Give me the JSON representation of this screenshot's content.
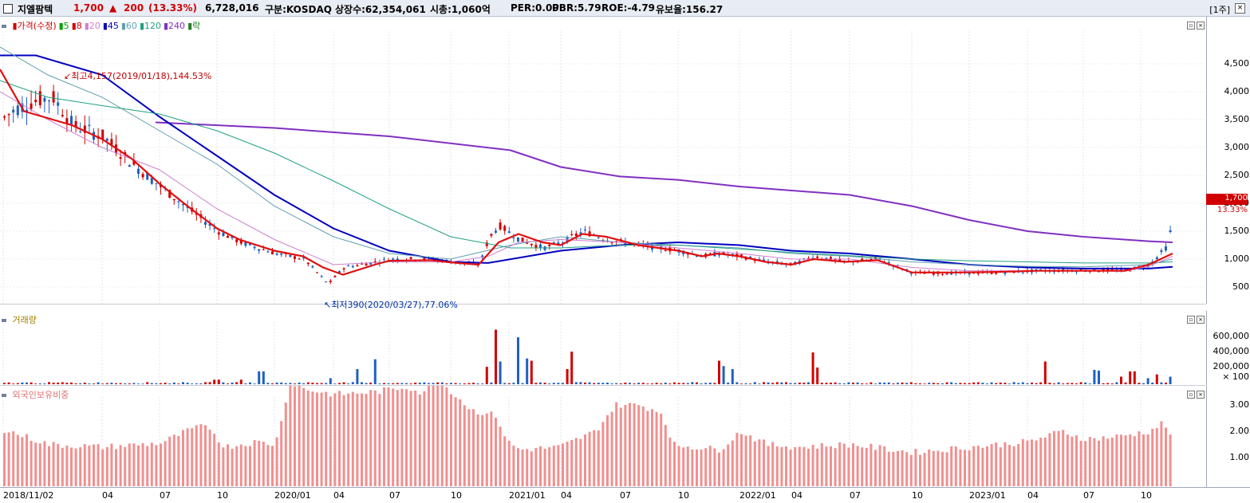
{
  "header": {
    "stock_name": "지엘팜텍",
    "price": "1,700",
    "change_arrow": "▲",
    "change": "200",
    "change_pct": "(13.33%)",
    "volume": "6,728,016",
    "market": "구분:KOSDAQ",
    "shares": "상장수:62,354,061",
    "market_cap": "시총:1,060억",
    "per": "PER:0.00",
    "pbr": "PBR:5.79",
    "roe": "ROE:-4.79",
    "reserve": "유보율:156.27",
    "period": "[1주]"
  },
  "price_panel": {
    "legend": [
      {
        "label": "가격(수정)",
        "color": "#d00000"
      },
      {
        "label": "5",
        "color": "#00a000"
      },
      {
        "label": "8",
        "color": "#d00000"
      },
      {
        "label": "20",
        "color": "#d080d0"
      },
      {
        "label": "45",
        "color": "#0000c0"
      },
      {
        "label": "60",
        "color": "#60a0b0"
      },
      {
        "label": "120",
        "color": "#20a080"
      },
      {
        "label": "240",
        "color": "#8030c0"
      },
      {
        "label": "락",
        "color": "#208020"
      }
    ],
    "yticks": [
      "4,500",
      "4,000",
      "3,500",
      "3,000",
      "2,500",
      "2,000",
      "1,500",
      "1,000",
      "500"
    ],
    "high_label": "최고4,157(2019/01/18),144.53%",
    "low_label": "최저390(2020/03/27),77.06%",
    "current_price": "1,700",
    "current_pct": "13.33%"
  },
  "volume_panel": {
    "title": "거래량",
    "yticks": [
      "600,000",
      "400,000",
      "200,000"
    ],
    "unit": "× 100"
  },
  "foreign_panel": {
    "title": "외국인보유비중",
    "yticks": [
      "3.00",
      "2.00",
      "1.00"
    ]
  },
  "xaxis": [
    {
      "label": "2018/11/02",
      "x": 4
    },
    {
      "label": "04",
      "x": 128
    },
    {
      "label": "07",
      "x": 200
    },
    {
      "label": "10",
      "x": 272
    },
    {
      "label": "2020/01",
      "x": 344
    },
    {
      "label": "04",
      "x": 418
    },
    {
      "label": "07",
      "x": 488
    },
    {
      "label": "10",
      "x": 565
    },
    {
      "label": "2021/01",
      "x": 638
    },
    {
      "label": "04",
      "x": 703
    },
    {
      "label": "07",
      "x": 777
    },
    {
      "label": "10",
      "x": 850
    },
    {
      "label": "2022/01",
      "x": 927
    },
    {
      "label": "04",
      "x": 992
    },
    {
      "label": "07",
      "x": 1065
    },
    {
      "label": "10",
      "x": 1143
    },
    {
      "label": "2023/01",
      "x": 1215
    },
    {
      "label": "04",
      "x": 1288
    },
    {
      "label": "07",
      "x": 1358
    },
    {
      "label": "10",
      "x": 1430
    }
  ],
  "chart_data": {
    "type": "line",
    "price_approx": [
      [
        "2018/11",
        3500
      ],
      [
        "2019/01",
        3900
      ],
      [
        "2019/04",
        3100
      ],
      [
        "2019/07",
        2300
      ],
      [
        "2019/10",
        1500
      ],
      [
        "2020/01",
        1100
      ],
      [
        "2020/03",
        600
      ],
      [
        "2020/07",
        1000
      ],
      [
        "2020/10",
        950
      ],
      [
        "2020/12",
        1500
      ],
      [
        "2021/04",
        1400
      ],
      [
        "2021/07",
        1300
      ],
      [
        "2021/10",
        1100
      ],
      [
        "2022/01",
        950
      ],
      [
        "2022/04",
        1100
      ],
      [
        "2022/10",
        750
      ],
      [
        "2023/01",
        780
      ],
      [
        "2023/07",
        800
      ],
      [
        "2023/10",
        900
      ],
      [
        "2023/12",
        1700
      ]
    ],
    "ma240_approx": [
      [
        "2019/04",
        3450
      ],
      [
        "2020/01",
        3200
      ],
      [
        "2020/10",
        3000
      ],
      [
        "2021/01",
        2900
      ],
      [
        "2021/07",
        2450
      ],
      [
        "2022/01",
        2300
      ],
      [
        "2022/07",
        2050
      ],
      [
        "2023/01",
        1600
      ],
      [
        "2023/07",
        1250
      ],
      [
        "2023/12",
        1150
      ]
    ]
  }
}
